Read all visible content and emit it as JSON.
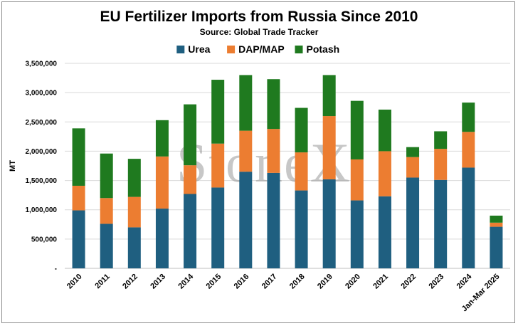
{
  "chart_data": {
    "type": "bar",
    "stacked": true,
    "title": "EU Fertilizer Imports from Russia Since 2010",
    "subtitle": "Source: Global Trade Tracker",
    "ylabel": "MT",
    "xlabel": "",
    "ylim": [
      0,
      3500000
    ],
    "yticks": [
      0,
      500000,
      1000000,
      1500000,
      2000000,
      2500000,
      3000000,
      3500000
    ],
    "ytick_labels": [
      "-",
      "500,000",
      "1,000,000",
      "1,500,000",
      "2,000,000",
      "2,500,000",
      "3,000,000",
      "3,500,000"
    ],
    "grid": true,
    "legend_position": "top",
    "categories": [
      "2010",
      "2011",
      "2012",
      "2013",
      "2014",
      "2015",
      "2016",
      "2017",
      "2018",
      "2019",
      "2020",
      "2021",
      "2022",
      "2023",
      "2024",
      "Jan-Mar 2025"
    ],
    "series": [
      {
        "name": "Urea",
        "color": "#1f5f80",
        "values": [
          990000,
          760000,
          700000,
          1020000,
          1270000,
          1380000,
          1650000,
          1630000,
          1330000,
          1520000,
          1160000,
          1230000,
          1550000,
          1510000,
          1720000,
          710000
        ]
      },
      {
        "name": "DAP/MAP",
        "color": "#ec7d31",
        "values": [
          420000,
          440000,
          520000,
          890000,
          490000,
          750000,
          700000,
          750000,
          650000,
          1080000,
          700000,
          770000,
          350000,
          530000,
          610000,
          70000
        ]
      },
      {
        "name": "Potash",
        "color": "#1f7a1f",
        "values": [
          980000,
          760000,
          650000,
          620000,
          1040000,
          1090000,
          950000,
          850000,
          760000,
          700000,
          1000000,
          710000,
          170000,
          300000,
          500000,
          120000
        ]
      }
    ]
  },
  "watermark": "StoneX"
}
